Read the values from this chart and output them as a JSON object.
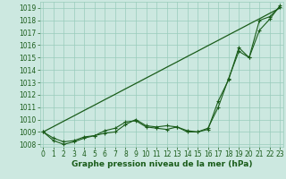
{
  "xlabel": "Graphe pression niveau de la mer (hPa)",
  "background_color": "#cce8e0",
  "grid_color": "#99ccbb",
  "line_color": "#1a5c1a",
  "ylim": [
    1007.8,
    1019.5
  ],
  "xlim": [
    -0.3,
    23.3
  ],
  "yticks": [
    1008,
    1009,
    1010,
    1011,
    1012,
    1013,
    1014,
    1015,
    1016,
    1017,
    1018,
    1019
  ],
  "xticks": [
    0,
    1,
    2,
    3,
    4,
    5,
    6,
    7,
    8,
    9,
    10,
    11,
    12,
    13,
    14,
    15,
    16,
    17,
    18,
    19,
    20,
    21,
    22,
    23
  ],
  "line_smooth": [
    1009.0,
    1009.43,
    1009.87,
    1010.3,
    1010.74,
    1011.17,
    1011.61,
    1012.04,
    1012.48,
    1012.91,
    1013.35,
    1013.78,
    1014.22,
    1014.65,
    1015.09,
    1015.52,
    1015.96,
    1016.39,
    1016.83,
    1017.26,
    1017.7,
    1018.13,
    1018.57,
    1019.0
  ],
  "line_mid": [
    1009.0,
    1008.5,
    1008.2,
    1008.3,
    1008.6,
    1008.7,
    1008.9,
    1009.0,
    1009.6,
    1010.0,
    1009.5,
    1009.4,
    1009.5,
    1009.4,
    1009.1,
    1009.0,
    1009.2,
    1011.5,
    1013.2,
    1015.8,
    1015.0,
    1018.0,
    1018.3,
    1019.1
  ],
  "line_jagged": [
    1009.0,
    1008.3,
    1008.0,
    1008.2,
    1008.5,
    1008.7,
    1009.1,
    1009.3,
    1009.8,
    1009.9,
    1009.4,
    1009.3,
    1009.2,
    1009.4,
    1009.0,
    1009.0,
    1009.3,
    1011.0,
    1013.3,
    1015.5,
    1015.0,
    1017.2,
    1018.1,
    1019.2
  ],
  "tick_fontsize": 5.5,
  "xlabel_fontsize": 6.5
}
